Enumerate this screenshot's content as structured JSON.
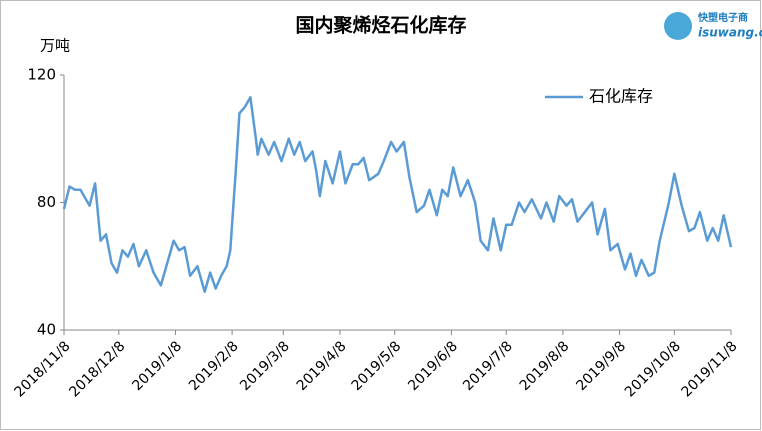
{
  "chart_data": {
    "type": "line",
    "title": "国内聚烯烃石化库存",
    "y_label": "万吨",
    "logo": [
      "快塑电子商",
      "isuwang.co"
    ],
    "x": [
      "2018/11/8",
      "2018/11/11",
      "2018/11/14",
      "2018/11/17",
      "2018/11/20",
      "2018/11/22",
      "2018/11/25",
      "2018/11/28",
      "2018/12/1",
      "2018/12/4",
      "2018/12/7",
      "2018/12/10",
      "2018/12/13",
      "2018/12/16",
      "2018/12/19",
      "2018/12/23",
      "2018/12/27",
      "2018/12/31",
      "2019/1/4",
      "2019/1/7",
      "2019/1/10",
      "2019/1/13",
      "2019/1/16",
      "2019/1/20",
      "2019/1/24",
      "2019/1/27",
      "2019/1/30",
      "2019/2/2",
      "2019/2/5",
      "2019/2/7",
      "2019/2/10",
      "2019/2/12",
      "2019/2/15",
      "2019/2/18",
      "2019/2/21",
      "2019/2/22",
      "2019/2/24",
      "2019/2/28",
      "2019/3/3",
      "2019/3/7",
      "2019/3/11",
      "2019/3/14",
      "2019/3/17",
      "2019/3/20",
      "2019/3/24",
      "2019/3/26",
      "2019/3/28",
      "2019/3/31",
      "2019/4/4",
      "2019/4/8",
      "2019/4/11",
      "2019/4/15",
      "2019/4/18",
      "2019/4/21",
      "2019/4/24",
      "2019/4/29",
      "2019/5/2",
      "2019/5/6",
      "2019/5/9",
      "2019/5/13",
      "2019/5/16",
      "2019/5/20",
      "2019/5/24",
      "2019/5/27",
      "2019/5/31",
      "2019/6/3",
      "2019/6/6",
      "2019/6/9",
      "2019/6/13",
      "2019/6/17",
      "2019/6/21",
      "2019/6/24",
      "2019/6/28",
      "2019/7/1",
      "2019/7/5",
      "2019/7/8",
      "2019/7/11",
      "2019/7/15",
      "2019/7/18",
      "2019/7/22",
      "2019/7/27",
      "2019/7/30",
      "2019/8/3",
      "2019/8/6",
      "2019/8/10",
      "2019/8/13",
      "2019/8/16",
      "2019/8/20",
      "2019/8/24",
      "2019/8/27",
      "2019/8/31",
      "2019/9/3",
      "2019/9/7",
      "2019/9/11",
      "2019/9/14",
      "2019/9/17",
      "2019/9/20",
      "2019/9/24",
      "2019/9/27",
      "2019/9/30",
      "2019/10/5",
      "2019/10/8",
      "2019/10/12",
      "2019/10/16",
      "2019/10/19",
      "2019/10/22",
      "2019/10/26",
      "2019/10/29",
      "2019/11/1",
      "2019/11/4",
      "2019/11/8"
    ],
    "series": [
      {
        "name": "石化库存",
        "color": "#5b9bd5",
        "values": [
          78,
          85,
          84,
          84,
          81,
          79,
          86,
          68,
          70,
          61,
          58,
          65,
          63,
          67,
          60,
          65,
          58,
          54,
          62,
          68,
          65,
          66,
          57,
          60,
          52,
          58,
          53,
          57,
          60,
          65,
          90,
          108,
          110,
          113,
          100,
          95,
          100,
          95,
          99,
          93,
          100,
          95,
          99,
          93,
          96,
          90,
          82,
          93,
          86,
          96,
          86,
          92,
          92,
          94,
          87,
          89,
          93,
          99,
          96,
          99,
          88,
          77,
          79,
          84,
          76,
          84,
          82,
          91,
          82,
          87,
          80,
          68,
          65,
          75,
          65,
          73,
          73,
          80,
          77,
          81,
          75,
          80,
          74,
          82,
          79,
          81,
          74,
          77,
          80,
          70,
          78,
          65,
          67,
          59,
          64,
          57,
          62,
          57,
          58,
          68,
          80,
          89,
          79,
          71,
          72,
          77,
          68,
          72,
          68,
          76,
          66
        ]
      }
    ],
    "xlim": [
      "2018/11/8",
      "2019/11/8"
    ],
    "xticks": [
      "2018/11/8",
      "2018/12/8",
      "2019/1/8",
      "2019/2/8",
      "2019/3/8",
      "2019/4/8",
      "2019/5/8",
      "2019/6/8",
      "2019/7/8",
      "2019/8/8",
      "2019/9/8",
      "2019/10/8",
      "2019/11/8"
    ],
    "ylim": [
      40,
      120
    ],
    "yticks": [
      40,
      80,
      120
    ],
    "grid": false,
    "legend": "top-right"
  }
}
